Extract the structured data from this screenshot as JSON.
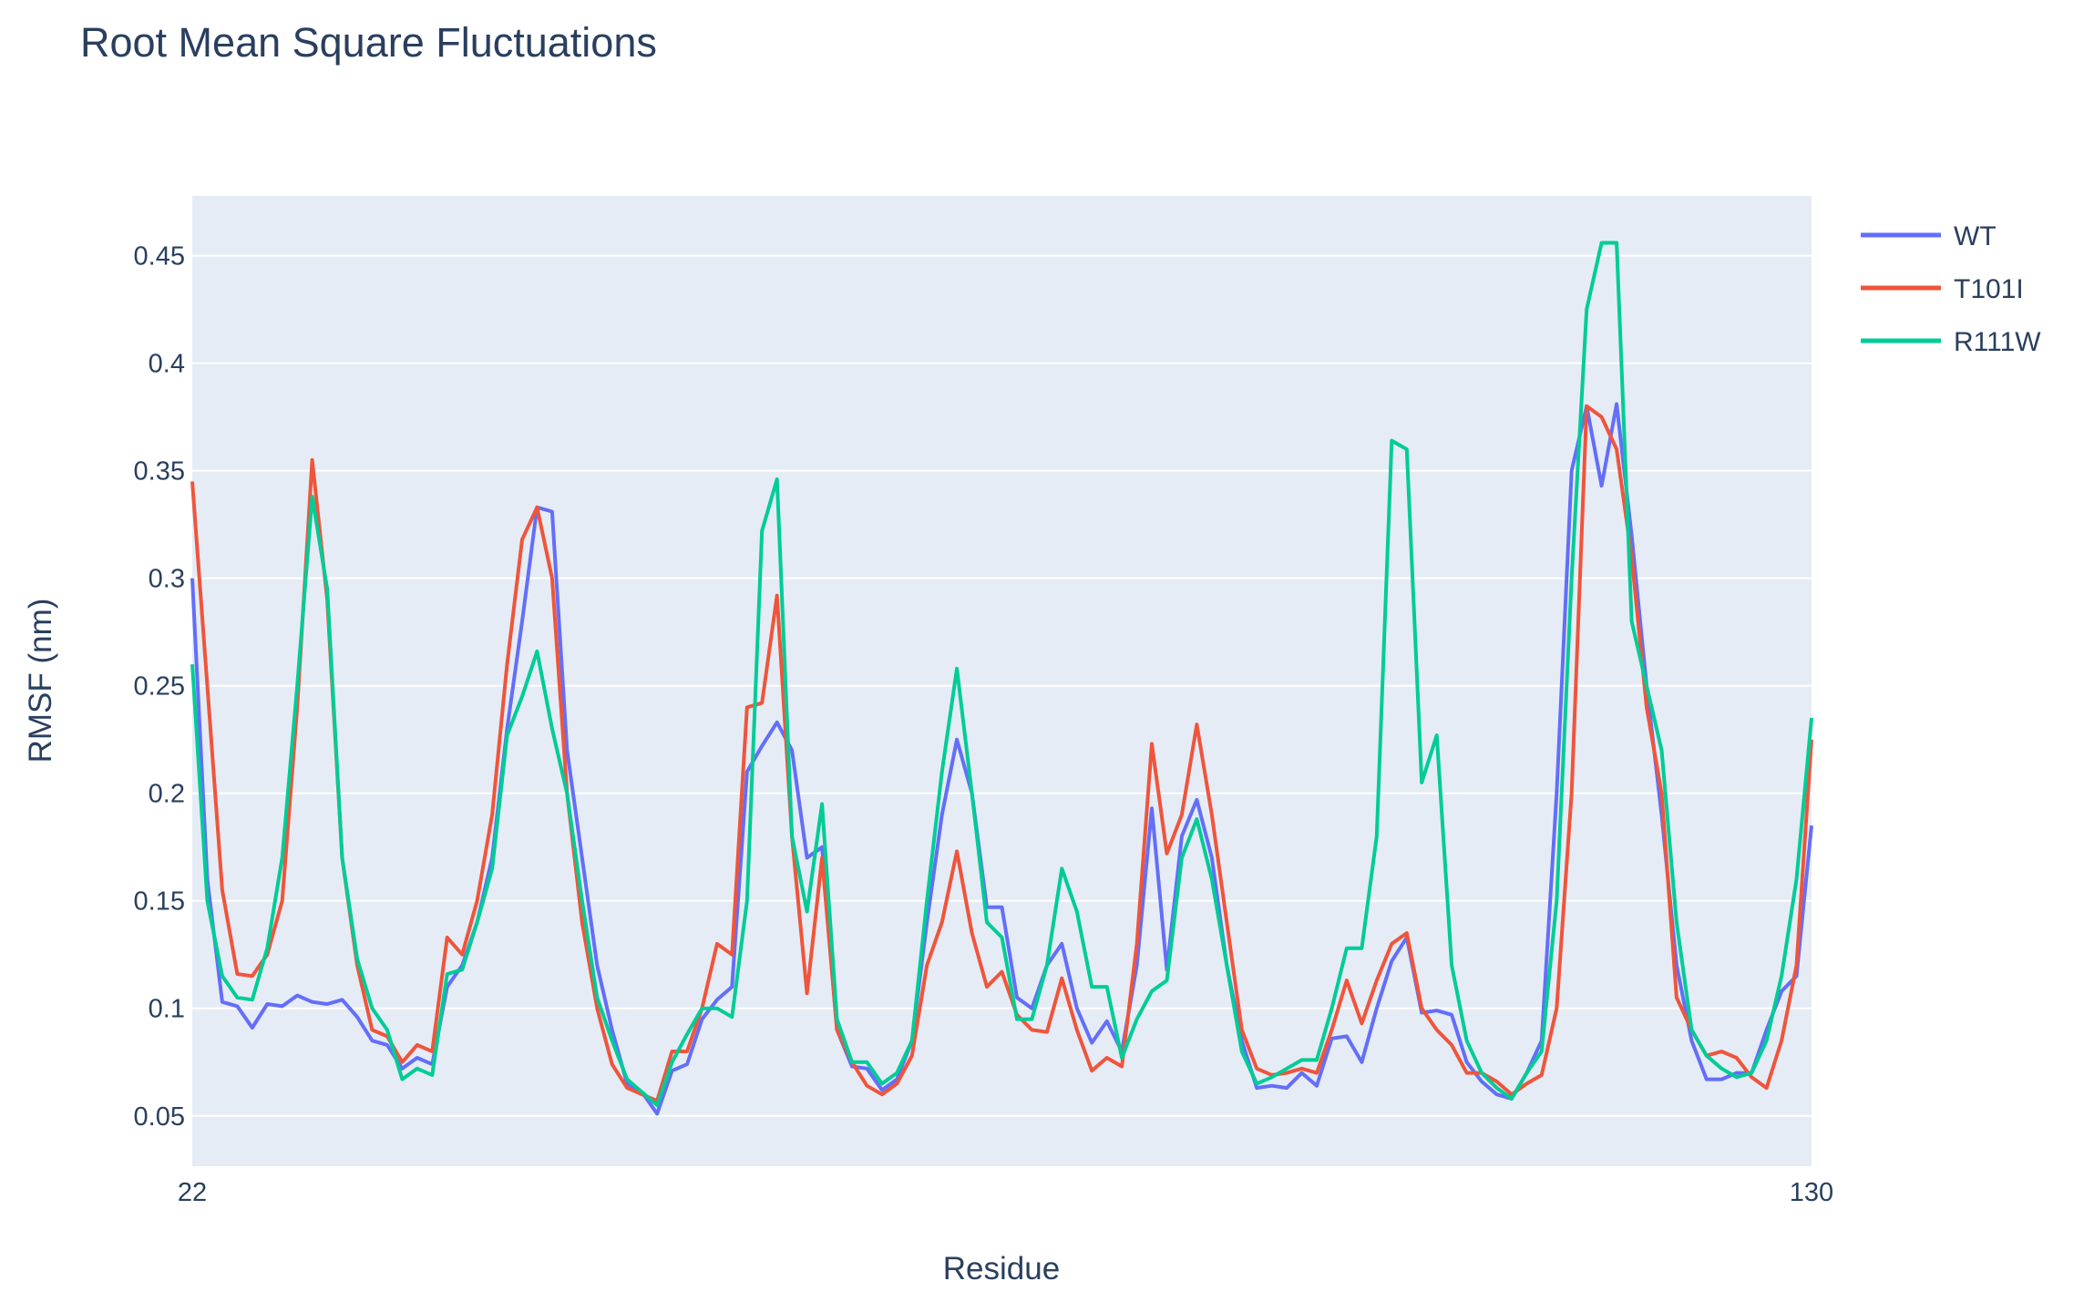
{
  "chart_data": {
    "type": "line",
    "title": "Root Mean Square Fluctuations",
    "xlabel": "Residue",
    "ylabel": "RMSF (nm)",
    "xlim": [
      22,
      130
    ],
    "ylim": [
      0.0266,
      0.4778
    ],
    "x_ticks": [
      22,
      130
    ],
    "y_ticks": [
      0.05,
      0.1,
      0.15,
      0.2,
      0.25,
      0.3,
      0.35,
      0.4,
      0.45
    ],
    "y_tick_labels": [
      "0.05",
      "0.1",
      "0.15",
      "0.2",
      "0.25",
      "0.3",
      "0.35",
      "0.4",
      "0.45"
    ],
    "grid": true,
    "legend_position": "top-right",
    "plot_background": "#E5ECF6",
    "x_start": 22,
    "x_step": 1,
    "series": [
      {
        "name": "WT",
        "color": "#636EFA",
        "values": [
          0.3,
          0.16,
          0.103,
          0.101,
          0.091,
          0.102,
          0.101,
          0.106,
          0.103,
          0.102,
          0.104,
          0.096,
          0.085,
          0.083,
          0.072,
          0.077,
          0.074,
          0.11,
          0.12,
          0.14,
          0.17,
          0.23,
          0.28,
          0.333,
          0.331,
          0.22,
          0.17,
          0.12,
          0.09,
          0.065,
          0.061,
          0.051,
          0.071,
          0.074,
          0.095,
          0.104,
          0.11,
          0.21,
          0.222,
          0.233,
          0.22,
          0.17,
          0.175,
          0.09,
          0.073,
          0.072,
          0.062,
          0.067,
          0.085,
          0.14,
          0.19,
          0.225,
          0.2,
          0.147,
          0.147,
          0.105,
          0.1,
          0.12,
          0.13,
          0.1,
          0.084,
          0.094,
          0.08,
          0.12,
          0.193,
          0.118,
          0.18,
          0.197,
          0.17,
          0.12,
          0.085,
          0.063,
          0.064,
          0.063,
          0.07,
          0.064,
          0.086,
          0.087,
          0.075,
          0.1,
          0.122,
          0.133,
          0.098,
          0.099,
          0.097,
          0.075,
          0.066,
          0.06,
          0.058,
          0.07,
          0.085,
          0.2,
          0.35,
          0.38,
          0.343,
          0.381,
          0.32,
          0.25,
          0.19,
          0.12,
          0.085,
          0.067,
          0.067,
          0.07,
          0.07,
          0.09,
          0.108,
          0.115,
          0.185
        ]
      },
      {
        "name": "T101I",
        "color": "#EF553B",
        "values": [
          0.345,
          0.25,
          0.155,
          0.116,
          0.115,
          0.125,
          0.15,
          0.24,
          0.355,
          0.29,
          0.17,
          0.12,
          0.09,
          0.087,
          0.075,
          0.083,
          0.08,
          0.133,
          0.125,
          0.15,
          0.19,
          0.26,
          0.318,
          0.333,
          0.3,
          0.2,
          0.14,
          0.1,
          0.074,
          0.063,
          0.06,
          0.057,
          0.08,
          0.08,
          0.1,
          0.13,
          0.125,
          0.24,
          0.242,
          0.292,
          0.18,
          0.107,
          0.17,
          0.09,
          0.075,
          0.064,
          0.06,
          0.065,
          0.078,
          0.12,
          0.14,
          0.173,
          0.135,
          0.11,
          0.117,
          0.097,
          0.09,
          0.089,
          0.114,
          0.09,
          0.071,
          0.077,
          0.073,
          0.13,
          0.223,
          0.172,
          0.19,
          0.232,
          0.19,
          0.14,
          0.09,
          0.072,
          0.069,
          0.07,
          0.072,
          0.07,
          0.09,
          0.113,
          0.093,
          0.113,
          0.13,
          0.135,
          0.1,
          0.09,
          0.083,
          0.07,
          0.07,
          0.066,
          0.06,
          0.065,
          0.069,
          0.1,
          0.2,
          0.38,
          0.375,
          0.36,
          0.31,
          0.24,
          0.2,
          0.105,
          0.09,
          0.078,
          0.08,
          0.077,
          0.068,
          0.063,
          0.085,
          0.12,
          0.225
        ]
      },
      {
        "name": "R111W",
        "color": "#00CC96",
        "values": [
          0.26,
          0.15,
          0.115,
          0.105,
          0.104,
          0.128,
          0.17,
          0.25,
          0.338,
          0.295,
          0.17,
          0.123,
          0.1,
          0.09,
          0.067,
          0.072,
          0.069,
          0.116,
          0.118,
          0.14,
          0.165,
          0.227,
          0.245,
          0.266,
          0.23,
          0.2,
          0.15,
          0.105,
          0.085,
          0.067,
          0.061,
          0.055,
          0.075,
          0.088,
          0.1,
          0.1,
          0.096,
          0.15,
          0.322,
          0.346,
          0.18,
          0.145,
          0.195,
          0.095,
          0.075,
          0.075,
          0.065,
          0.07,
          0.085,
          0.15,
          0.21,
          0.258,
          0.2,
          0.14,
          0.133,
          0.095,
          0.095,
          0.12,
          0.165,
          0.145,
          0.11,
          0.11,
          0.077,
          0.095,
          0.108,
          0.113,
          0.17,
          0.188,
          0.16,
          0.12,
          0.08,
          0.065,
          0.068,
          0.072,
          0.076,
          0.076,
          0.1,
          0.128,
          0.128,
          0.18,
          0.364,
          0.36,
          0.205,
          0.227,
          0.12,
          0.085,
          0.07,
          0.063,
          0.058,
          0.07,
          0.08,
          0.15,
          0.3,
          0.425,
          0.456,
          0.456,
          0.28,
          0.25,
          0.22,
          0.14,
          0.09,
          0.078,
          0.072,
          0.068,
          0.07,
          0.085,
          0.115,
          0.16,
          0.235
        ]
      }
    ]
  }
}
